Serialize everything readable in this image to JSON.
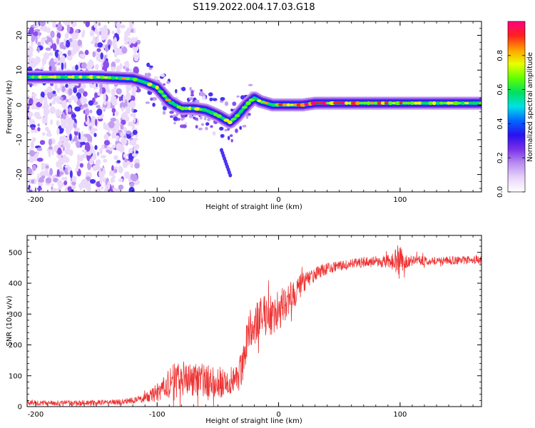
{
  "figure": {
    "title": "S119.2022.004.17.03.G18"
  },
  "chart_data": [
    {
      "type": "heatmap",
      "title": "",
      "xlabel": "Height of straight line (km)",
      "ylabel": "Frequency (Hz)",
      "xlim": [
        -207,
        167
      ],
      "ylim": [
        -25,
        24
      ],
      "x_ticks": [
        -200,
        -100,
        0,
        100
      ],
      "x_tick_labels": [
        "-200",
        "-100",
        "0",
        "100"
      ],
      "y_ticks": [
        -20,
        -10,
        0,
        10,
        20
      ],
      "y_tick_labels": [
        "-20",
        "-10",
        "0",
        "10",
        "20"
      ],
      "ridge": {
        "x": [
          -207,
          -180,
          -150,
          -120,
          -110,
          -100,
          -90,
          -80,
          -70,
          -60,
          -50,
          -45,
          -40,
          -35,
          -30,
          -25,
          -20,
          -15,
          -10,
          -5,
          0,
          10,
          20,
          30,
          50,
          100,
          167
        ],
        "y": [
          8,
          8,
          8,
          7.5,
          6.5,
          5,
          1,
          -1,
          -1,
          -1.5,
          -3,
          -4,
          -5,
          -3.5,
          -1.5,
          0.5,
          2,
          1,
          0.5,
          0,
          0,
          0,
          0,
          0.5,
          0.5,
          0.5,
          0.5
        ]
      },
      "noise_region_x": [
        -207,
        -115
      ],
      "grid": false,
      "colorbar": {
        "label": "Normalized spectral amplitude",
        "range": [
          0,
          1
        ],
        "ticks": [
          0.0,
          0.2,
          0.4,
          0.6,
          0.8
        ],
        "tick_labels": [
          "0.0",
          "0.2",
          "0.4",
          "0.6",
          "0.8"
        ],
        "colors": [
          "#ffffff",
          "#e8d4fa",
          "#b88ef0",
          "#7a30e8",
          "#2a10f0",
          "#0066ff",
          "#00e0e6",
          "#00e060",
          "#60ff00",
          "#e8ff00",
          "#ffa000",
          "#ff2020",
          "#ff0080"
        ]
      }
    },
    {
      "type": "line",
      "title": "",
      "xlabel": "Height of straight line (km)",
      "ylabel": "SNR (10 * v/v)",
      "xlim": [
        -207,
        167
      ],
      "ylim": [
        0,
        555
      ],
      "x_ticks": [
        -200,
        -100,
        0,
        100
      ],
      "x_tick_labels": [
        "-200",
        "-100",
        "0",
        "100"
      ],
      "y_ticks": [
        0,
        100,
        200,
        300,
        400,
        500
      ],
      "y_tick_labels": [
        "0",
        "100",
        "200",
        "300",
        "400",
        "500"
      ],
      "grid": false,
      "series": [
        {
          "color": "#ee3333",
          "x": [
            -207,
            -190,
            -170,
            -150,
            -130,
            -120,
            -110,
            -100,
            -95,
            -90,
            -85,
            -80,
            -75,
            -70,
            -65,
            -60,
            -55,
            -50,
            -45,
            -40,
            -35,
            -30,
            -25,
            -20,
            -15,
            -10,
            -5,
            0,
            5,
            10,
            15,
            20,
            25,
            30,
            35,
            40,
            50,
            60,
            70,
            80,
            90,
            95,
            98,
            100,
            102,
            105,
            110,
            120,
            130,
            140,
            150,
            160,
            167
          ],
          "y": [
            12,
            12,
            12,
            13,
            15,
            20,
            28,
            45,
            58,
            72,
            82,
            92,
            90,
            92,
            88,
            85,
            82,
            80,
            78,
            82,
            92,
            125,
            250,
            265,
            285,
            300,
            305,
            310,
            330,
            355,
            375,
            398,
            415,
            428,
            440,
            448,
            455,
            462,
            468,
            470,
            471,
            472,
            472,
            472,
            470,
            472,
            473,
            473,
            473,
            474,
            474,
            475,
            475
          ],
          "noise_amplitude": [
            8,
            8,
            8,
            8,
            9,
            10,
            14,
            30,
            40,
            55,
            60,
            62,
            58,
            58,
            55,
            52,
            50,
            50,
            48,
            48,
            52,
            58,
            60,
            62,
            68,
            70,
            75,
            65,
            60,
            55,
            45,
            35,
            25,
            22,
            20,
            18,
            16,
            16,
            16,
            18,
            20,
            30,
            50,
            70,
            40,
            22,
            16,
            14,
            13,
            13,
            13,
            13,
            13
          ]
        }
      ]
    }
  ]
}
